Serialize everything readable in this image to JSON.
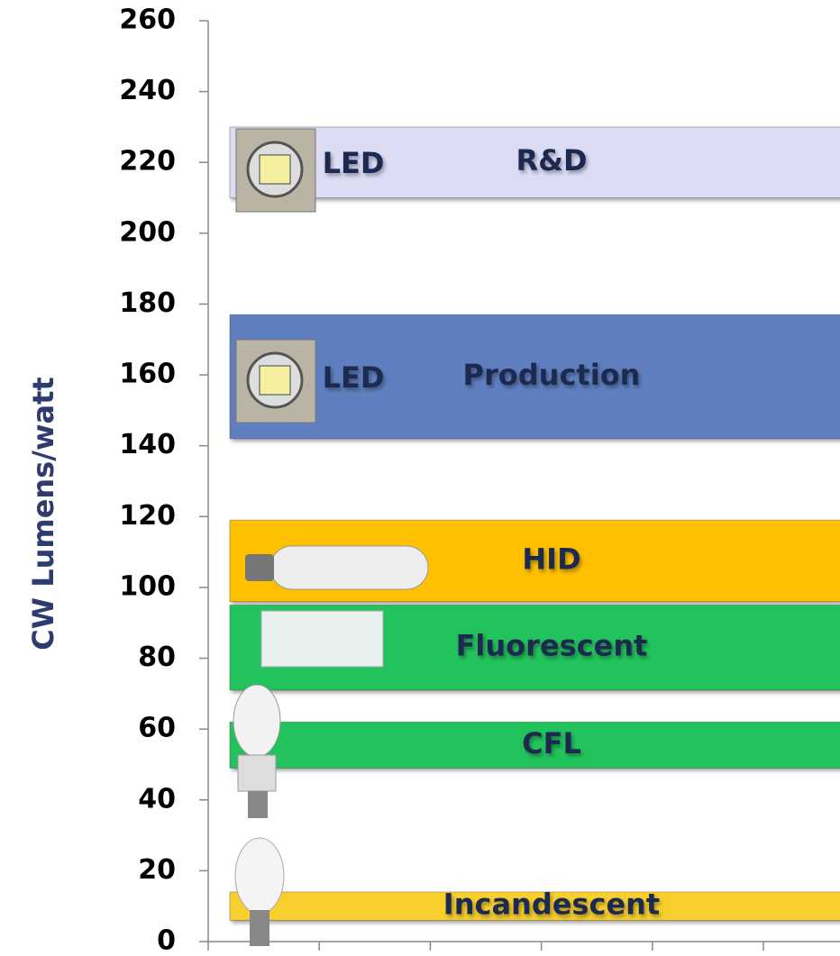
{
  "chart_data": {
    "type": "range-bar",
    "ylabel": "CW Lumens/watt",
    "ylim": [
      0,
      260
    ],
    "yticks": [
      0,
      20,
      40,
      60,
      80,
      100,
      120,
      140,
      160,
      180,
      200,
      220,
      240,
      260
    ],
    "bars": [
      {
        "name": "R&D",
        "tag": "LED",
        "low": 210,
        "high": 230,
        "color": "#dcdcf5"
      },
      {
        "name": "Production",
        "tag": "LED",
        "low": 142,
        "high": 177,
        "color": "#5f7fc0"
      },
      {
        "name": "HID",
        "low": 96,
        "high": 119,
        "color": "#ffc000"
      },
      {
        "name": "Fluorescent",
        "low": 71,
        "high": 95,
        "color": "#22c35c"
      },
      {
        "name": "CFL",
        "low": 49,
        "high": 62,
        "color": "#22c35c"
      },
      {
        "name": "Incandescent",
        "low": 6,
        "high": 14,
        "color": "#f9cf2e"
      }
    ]
  }
}
